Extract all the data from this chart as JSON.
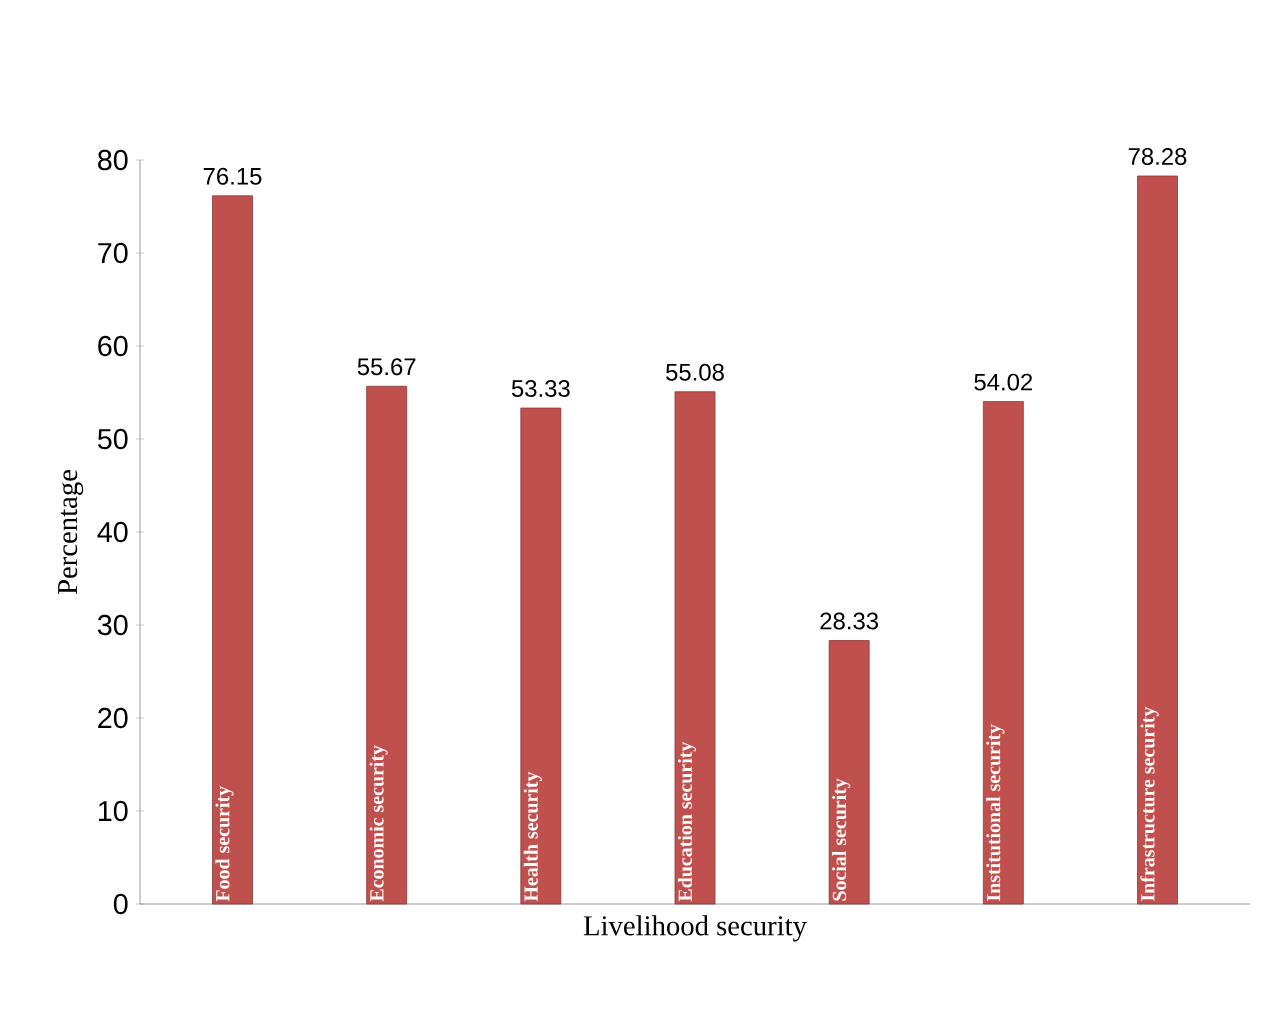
{
  "chart_data": {
    "type": "bar",
    "xlabel": "Livelihood security",
    "ylabel": "Percentage",
    "categories": [
      "Food security",
      "Economic security",
      "Health security",
      "Education security",
      "Social security",
      "Institutional security",
      "Infrastructure security"
    ],
    "values": [
      76.15,
      55.67,
      53.33,
      55.08,
      28.33,
      54.02,
      78.28
    ],
    "color": "#c0504d",
    "ylim": [
      0,
      80
    ],
    "yticks": [
      0,
      10,
      20,
      30,
      40,
      50,
      60,
      70,
      80
    ],
    "data_labels": true,
    "grid": false
  }
}
